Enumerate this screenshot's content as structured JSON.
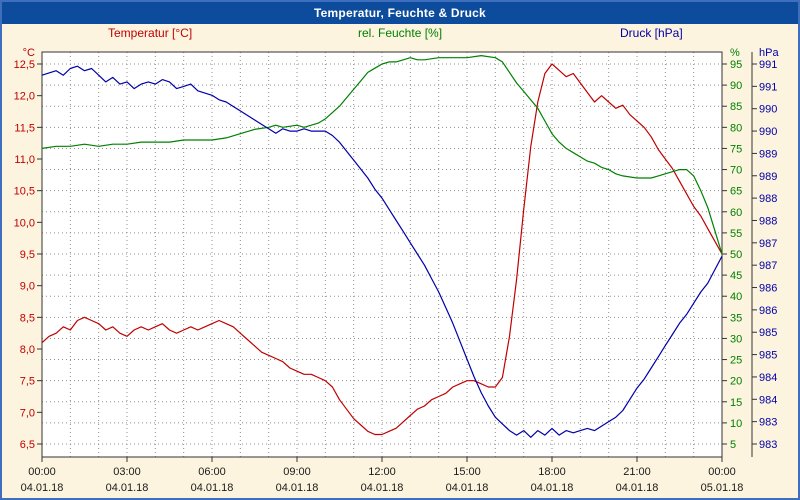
{
  "window": {
    "title": "Temperatur, Feuchte & Druck"
  },
  "legend": {
    "temperature": "Temperatur [°C]",
    "humidity": "rel. Feuchte [%]",
    "pressure": "Druck [hPa]"
  },
  "colors": {
    "temperature": "#c00000",
    "humidity": "#008000",
    "pressure": "#0000a8",
    "titlebar": "#0d4c9c",
    "window_background": "#fcf4df",
    "plot_background": "#ffffff",
    "grid": "#909090",
    "axis": "#333333",
    "axis_text": "#1a1a1a"
  },
  "chart_data": {
    "type": "line",
    "title": "Temperatur, Feuchte & Druck",
    "x_axis": {
      "unit": "time",
      "range_hours": [
        0,
        24
      ],
      "tick_hours": [
        0,
        3,
        6,
        9,
        12,
        15,
        18,
        21,
        24
      ],
      "tick_labels": [
        "00:00",
        "03:00",
        "06:00",
        "09:00",
        "12:00",
        "15:00",
        "18:00",
        "21:00",
        "00:00"
      ],
      "date_labels": [
        "04.01.18",
        "04.01.18",
        "04.01.18",
        "04.01.18",
        "04.01.18",
        "04.01.18",
        "04.01.18",
        "04.01.18",
        "05.01.18"
      ]
    },
    "y_axes": {
      "temperature": {
        "unit": "°C",
        "color": "#c00000",
        "max": 12.5,
        "min": 6.5,
        "step": 0.5,
        "side": "left",
        "tick_labels": [
          "12,5",
          "12,0",
          "11,5",
          "11,0",
          "10,5",
          "10,0",
          "9,5",
          "9,0",
          "8,5",
          "8,0",
          "7,5",
          "7,0",
          "6,5"
        ]
      },
      "humidity": {
        "unit": "%",
        "color": "#008000",
        "max": 95,
        "min": 5,
        "step": 5,
        "side": "right-inner",
        "tick_labels": [
          "95",
          "90",
          "85",
          "80",
          "75",
          "70",
          "65",
          "60",
          "55",
          "50",
          "45",
          "40",
          "35",
          "30",
          "25",
          "20",
          "15",
          "10",
          "5"
        ]
      },
      "pressure": {
        "unit": "hPa",
        "color": "#0000a8",
        "max": 991.5,
        "min": 983.0,
        "step": 0.5,
        "side": "right-outer",
        "tick_labels": [
          "991",
          "991",
          "990",
          "990",
          "989",
          "989",
          "988",
          "988",
          "987",
          "987",
          "986",
          "986",
          "985",
          "985",
          "984",
          "984",
          "983",
          "983"
        ]
      }
    },
    "grid": {
      "vertical_every_hours": 1,
      "horizontal_follow": "humidity",
      "style": "dotted"
    },
    "series": [
      {
        "name": "Temperatur",
        "axis": "temperature",
        "color": "#c00000",
        "points": [
          [
            0,
            8.1
          ],
          [
            0.25,
            8.2
          ],
          [
            0.5,
            8.25
          ],
          [
            0.75,
            8.35
          ],
          [
            1,
            8.3
          ],
          [
            1.25,
            8.45
          ],
          [
            1.5,
            8.5
          ],
          [
            1.75,
            8.45
          ],
          [
            2,
            8.4
          ],
          [
            2.25,
            8.3
          ],
          [
            2.5,
            8.35
          ],
          [
            2.75,
            8.25
          ],
          [
            3,
            8.2
          ],
          [
            3.25,
            8.3
          ],
          [
            3.5,
            8.35
          ],
          [
            3.75,
            8.3
          ],
          [
            4,
            8.35
          ],
          [
            4.25,
            8.4
          ],
          [
            4.5,
            8.3
          ],
          [
            4.75,
            8.25
          ],
          [
            5,
            8.3
          ],
          [
            5.25,
            8.35
          ],
          [
            5.5,
            8.3
          ],
          [
            5.75,
            8.35
          ],
          [
            6,
            8.4
          ],
          [
            6.25,
            8.45
          ],
          [
            6.5,
            8.4
          ],
          [
            6.75,
            8.35
          ],
          [
            7,
            8.25
          ],
          [
            7.25,
            8.15
          ],
          [
            7.5,
            8.05
          ],
          [
            7.75,
            7.95
          ],
          [
            8,
            7.9
          ],
          [
            8.25,
            7.85
          ],
          [
            8.5,
            7.8
          ],
          [
            8.75,
            7.7
          ],
          [
            9,
            7.65
          ],
          [
            9.25,
            7.6
          ],
          [
            9.5,
            7.6
          ],
          [
            9.75,
            7.55
          ],
          [
            10,
            7.5
          ],
          [
            10.25,
            7.4
          ],
          [
            10.5,
            7.2
          ],
          [
            10.75,
            7.05
          ],
          [
            11,
            6.9
          ],
          [
            11.25,
            6.8
          ],
          [
            11.5,
            6.7
          ],
          [
            11.75,
            6.65
          ],
          [
            12,
            6.65
          ],
          [
            12.25,
            6.7
          ],
          [
            12.5,
            6.75
          ],
          [
            12.75,
            6.85
          ],
          [
            13,
            6.95
          ],
          [
            13.25,
            7.05
          ],
          [
            13.5,
            7.1
          ],
          [
            13.75,
            7.2
          ],
          [
            14,
            7.25
          ],
          [
            14.25,
            7.3
          ],
          [
            14.5,
            7.4
          ],
          [
            14.75,
            7.45
          ],
          [
            15,
            7.5
          ],
          [
            15.25,
            7.5
          ],
          [
            15.5,
            7.45
          ],
          [
            15.75,
            7.4
          ],
          [
            16,
            7.4
          ],
          [
            16.25,
            7.55
          ],
          [
            16.5,
            8.2
          ],
          [
            16.75,
            9.1
          ],
          [
            17,
            10.2
          ],
          [
            17.25,
            11.2
          ],
          [
            17.5,
            11.9
          ],
          [
            17.75,
            12.35
          ],
          [
            18,
            12.5
          ],
          [
            18.25,
            12.4
          ],
          [
            18.5,
            12.3
          ],
          [
            18.75,
            12.35
          ],
          [
            19,
            12.2
          ],
          [
            19.25,
            12.05
          ],
          [
            19.5,
            11.9
          ],
          [
            19.75,
            12.0
          ],
          [
            20,
            11.9
          ],
          [
            20.25,
            11.8
          ],
          [
            20.5,
            11.85
          ],
          [
            20.75,
            11.7
          ],
          [
            21,
            11.6
          ],
          [
            21.25,
            11.5
          ],
          [
            21.5,
            11.35
          ],
          [
            21.75,
            11.15
          ],
          [
            22,
            11.0
          ],
          [
            22.25,
            10.85
          ],
          [
            22.5,
            10.65
          ],
          [
            22.75,
            10.45
          ],
          [
            23,
            10.25
          ],
          [
            23.25,
            10.1
          ],
          [
            23.5,
            9.9
          ],
          [
            23.75,
            9.7
          ],
          [
            24,
            9.5
          ]
        ]
      },
      {
        "name": "rel. Feuchte",
        "axis": "humidity",
        "color": "#008000",
        "points": [
          [
            0,
            75
          ],
          [
            0.5,
            75.5
          ],
          [
            1,
            75.5
          ],
          [
            1.5,
            76
          ],
          [
            2,
            75.5
          ],
          [
            2.5,
            76
          ],
          [
            3,
            76
          ],
          [
            3.5,
            76.5
          ],
          [
            4,
            76.5
          ],
          [
            4.5,
            76.5
          ],
          [
            5,
            77
          ],
          [
            5.5,
            77
          ],
          [
            6,
            77
          ],
          [
            6.5,
            77.5
          ],
          [
            7,
            78.5
          ],
          [
            7.5,
            79.5
          ],
          [
            8,
            80
          ],
          [
            8.25,
            80.5
          ],
          [
            8.5,
            80
          ],
          [
            9,
            80.5
          ],
          [
            9.25,
            80
          ],
          [
            9.5,
            80.5
          ],
          [
            9.75,
            81
          ],
          [
            10,
            82
          ],
          [
            10.25,
            83.5
          ],
          [
            10.5,
            85
          ],
          [
            10.75,
            87
          ],
          [
            11,
            89
          ],
          [
            11.25,
            91
          ],
          [
            11.5,
            93
          ],
          [
            11.75,
            94
          ],
          [
            12,
            95
          ],
          [
            12.25,
            95.5
          ],
          [
            12.5,
            95.5
          ],
          [
            12.75,
            96
          ],
          [
            13,
            96.5
          ],
          [
            13.25,
            96
          ],
          [
            13.5,
            96
          ],
          [
            14,
            96.5
          ],
          [
            14.5,
            96.5
          ],
          [
            15,
            96.5
          ],
          [
            15.5,
            97
          ],
          [
            16,
            96.5
          ],
          [
            16.25,
            95.5
          ],
          [
            16.5,
            93
          ],
          [
            16.75,
            90.5
          ],
          [
            17,
            88.5
          ],
          [
            17.25,
            86.5
          ],
          [
            17.5,
            84.5
          ],
          [
            17.75,
            81.5
          ],
          [
            18,
            78.5
          ],
          [
            18.25,
            76.5
          ],
          [
            18.5,
            75
          ],
          [
            18.75,
            74
          ],
          [
            19,
            73
          ],
          [
            19.25,
            72
          ],
          [
            19.5,
            71.5
          ],
          [
            19.75,
            70.5
          ],
          [
            20,
            70
          ],
          [
            20.25,
            69
          ],
          [
            20.5,
            68.5
          ],
          [
            21,
            68
          ],
          [
            21.5,
            68
          ],
          [
            21.75,
            68.5
          ],
          [
            22,
            69
          ],
          [
            22.25,
            69.5
          ],
          [
            22.5,
            70
          ],
          [
            22.75,
            70
          ],
          [
            23,
            68.5
          ],
          [
            23.25,
            65
          ],
          [
            23.5,
            61
          ],
          [
            23.75,
            55.5
          ],
          [
            24,
            50
          ]
        ]
      },
      {
        "name": "Druck",
        "axis": "pressure",
        "color": "#0000a8",
        "points": [
          [
            0,
            991.25
          ],
          [
            0.25,
            991.3
          ],
          [
            0.5,
            991.35
          ],
          [
            0.75,
            991.25
          ],
          [
            1,
            991.4
          ],
          [
            1.25,
            991.45
          ],
          [
            1.5,
            991.35
          ],
          [
            1.75,
            991.4
          ],
          [
            2,
            991.25
          ],
          [
            2.25,
            991.1
          ],
          [
            2.5,
            991.2
          ],
          [
            2.75,
            991.05
          ],
          [
            3,
            991.1
          ],
          [
            3.25,
            990.95
          ],
          [
            3.5,
            991.05
          ],
          [
            3.75,
            991.1
          ],
          [
            4,
            991.05
          ],
          [
            4.25,
            991.15
          ],
          [
            4.5,
            991.1
          ],
          [
            4.75,
            990.95
          ],
          [
            5,
            991
          ],
          [
            5.25,
            991.05
          ],
          [
            5.5,
            990.9
          ],
          [
            5.75,
            990.85
          ],
          [
            6,
            990.8
          ],
          [
            6.25,
            990.7
          ],
          [
            6.5,
            990.65
          ],
          [
            6.75,
            990.55
          ],
          [
            7,
            990.45
          ],
          [
            7.25,
            990.35
          ],
          [
            7.5,
            990.25
          ],
          [
            7.75,
            990.15
          ],
          [
            8,
            990.05
          ],
          [
            8.25,
            989.95
          ],
          [
            8.5,
            990.05
          ],
          [
            8.75,
            990
          ],
          [
            9,
            990
          ],
          [
            9.25,
            990.05
          ],
          [
            9.5,
            990
          ],
          [
            9.75,
            990
          ],
          [
            10,
            990
          ],
          [
            10.25,
            989.9
          ],
          [
            10.5,
            989.75
          ],
          [
            10.75,
            989.55
          ],
          [
            11,
            989.35
          ],
          [
            11.25,
            989.15
          ],
          [
            11.5,
            988.95
          ],
          [
            11.75,
            988.7
          ],
          [
            12,
            988.5
          ],
          [
            12.25,
            988.25
          ],
          [
            12.5,
            988
          ],
          [
            12.75,
            987.75
          ],
          [
            13,
            987.5
          ],
          [
            13.25,
            987.25
          ],
          [
            13.5,
            987
          ],
          [
            13.75,
            986.7
          ],
          [
            14,
            986.4
          ],
          [
            14.25,
            986.05
          ],
          [
            14.5,
            985.7
          ],
          [
            14.75,
            985.3
          ],
          [
            15,
            984.9
          ],
          [
            15.25,
            984.5
          ],
          [
            15.5,
            984.15
          ],
          [
            15.75,
            983.85
          ],
          [
            16,
            983.6
          ],
          [
            16.25,
            983.45
          ],
          [
            16.5,
            983.3
          ],
          [
            16.75,
            983.2
          ],
          [
            17,
            983.3
          ],
          [
            17.25,
            983.15
          ],
          [
            17.5,
            983.3
          ],
          [
            17.75,
            983.2
          ],
          [
            18,
            983.35
          ],
          [
            18.25,
            983.2
          ],
          [
            18.5,
            983.3
          ],
          [
            18.75,
            983.25
          ],
          [
            19,
            983.3
          ],
          [
            19.25,
            983.35
          ],
          [
            19.5,
            983.3
          ],
          [
            19.75,
            983.4
          ],
          [
            20,
            983.5
          ],
          [
            20.25,
            983.6
          ],
          [
            20.5,
            983.75
          ],
          [
            20.75,
            984
          ],
          [
            21,
            984.25
          ],
          [
            21.25,
            984.45
          ],
          [
            21.5,
            984.7
          ],
          [
            21.75,
            984.95
          ],
          [
            22,
            985.2
          ],
          [
            22.25,
            985.45
          ],
          [
            22.5,
            985.7
          ],
          [
            22.75,
            985.9
          ],
          [
            23,
            986.15
          ],
          [
            23.25,
            986.4
          ],
          [
            23.5,
            986.6
          ],
          [
            23.75,
            986.9
          ],
          [
            24,
            987.2
          ]
        ]
      }
    ]
  }
}
